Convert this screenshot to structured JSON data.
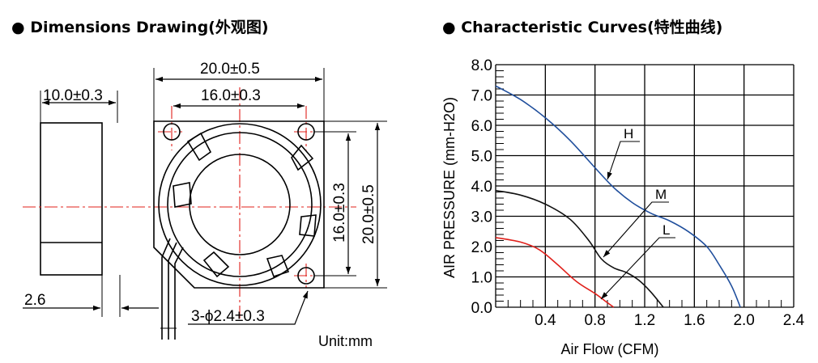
{
  "drawing": {
    "title": "● Dimensions Drawing(外观图)",
    "dims": {
      "width_total": "20.0±0.5",
      "hole_spacing_h": "16.0±0.3",
      "depth": "10.0±0.3",
      "hole_spacing_v": "16.0±0.3",
      "height_total": "20.0±0.5",
      "offset": "2.6",
      "holes": "3-ϕ2.4±0.3"
    },
    "unit": "Unit:mm"
  },
  "chart_data": {
    "type": "line",
    "title": "● Characteristic Curves(特性曲线)",
    "xlabel": "Air Flow (CFM)",
    "ylabel": "AIR PRESSURE (mm-H2O)",
    "xlim": [
      0,
      2.4
    ],
    "ylim": [
      0,
      8.0
    ],
    "grid": true,
    "x_ticks": [
      "0.4",
      "0.8",
      "1.2",
      "1.6",
      "2.0",
      "2.4"
    ],
    "y_ticks": [
      "0.0",
      "1.0",
      "2.0",
      "3.0",
      "4.0",
      "5.0",
      "6.0",
      "7.0",
      "8.0"
    ],
    "series": [
      {
        "name": "H",
        "color": "#1f4e9c",
        "points": [
          [
            0,
            7.3
          ],
          [
            0.2,
            6.85
          ],
          [
            0.4,
            6.25
          ],
          [
            0.6,
            5.5
          ],
          [
            0.8,
            4.6
          ],
          [
            0.95,
            3.95
          ],
          [
            1.1,
            3.45
          ],
          [
            1.25,
            3.1
          ],
          [
            1.4,
            2.85
          ],
          [
            1.55,
            2.5
          ],
          [
            1.7,
            2.0
          ],
          [
            1.8,
            1.4
          ],
          [
            1.9,
            0.7
          ],
          [
            1.97,
            0
          ]
        ]
      },
      {
        "name": "M",
        "color": "#111111",
        "points": [
          [
            0,
            3.85
          ],
          [
            0.2,
            3.7
          ],
          [
            0.4,
            3.4
          ],
          [
            0.6,
            2.9
          ],
          [
            0.75,
            2.2
          ],
          [
            0.85,
            1.6
          ],
          [
            0.95,
            1.3
          ],
          [
            1.05,
            1.15
          ],
          [
            1.15,
            0.9
          ],
          [
            1.25,
            0.5
          ],
          [
            1.35,
            0
          ]
        ]
      },
      {
        "name": "L",
        "color": "#e0201b",
        "points": [
          [
            0,
            2.3
          ],
          [
            0.2,
            2.15
          ],
          [
            0.35,
            1.9
          ],
          [
            0.5,
            1.4
          ],
          [
            0.65,
            0.85
          ],
          [
            0.8,
            0.45
          ],
          [
            0.9,
            0.15
          ],
          [
            0.95,
            0
          ]
        ]
      }
    ]
  }
}
